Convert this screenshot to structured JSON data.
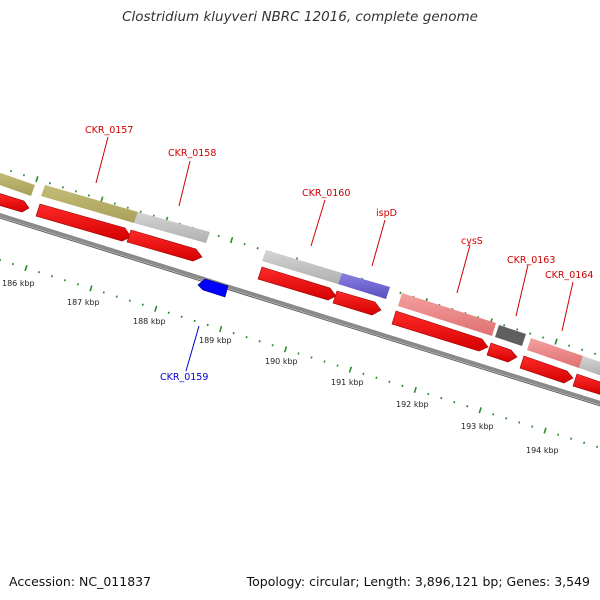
{
  "title": "Clostridium kluyveri NBRC 12016, complete genome",
  "footer": {
    "accession": "Accession: NC_011837",
    "topology": "Topology: circular; Length: 3,896,121 bp; Genes: 3,549"
  },
  "scale_labels": [
    "186 kbp",
    "187 kbp",
    "188 kbp",
    "189 kbp",
    "190 kbp",
    "191 kbp",
    "192 kbp",
    "193 kbp",
    "194 kbp"
  ],
  "gene_labels": {
    "CKR_0157": "CKR_0157",
    "CKR_0158": "CKR_0158",
    "CKR_0159": "CKR_0159",
    "CKR_0160": "CKR_0160",
    "ispD": "ispD",
    "cysS": "cysS",
    "CKR_0163": "CKR_0163",
    "CKR_0164": "CKR_0164"
  },
  "colors": {
    "forward_cds": "#ff0000",
    "reverse_cds": "#0000ff",
    "forward_label": "#cc0000",
    "reverse_label": "#0000cc",
    "backbone": "#808080",
    "tick": "#2e8b2e",
    "feature_olive": "#bdb66e",
    "feature_grey": "#c8c8c8",
    "feature_purple": "#7b6fd6",
    "feature_pink": "#f08c8c",
    "feature_dark": "#606060"
  }
}
